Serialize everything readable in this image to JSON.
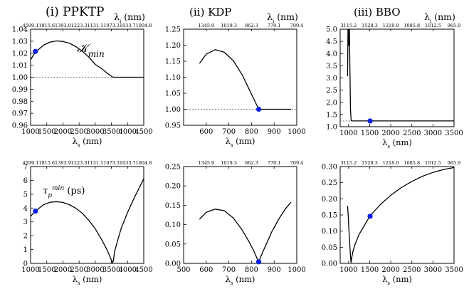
{
  "column_titles": [
    "(i) PPKTP",
    "(ii) KDP",
    "(iii) BBO"
  ],
  "chart_data": [
    {
      "id": "ppktp_k",
      "type": "line",
      "xlabel": "λs (nm)",
      "top_axis_label": "λi (nm)",
      "xlim": [
        1000,
        4500
      ],
      "ylim": [
        0.96,
        1.04
      ],
      "xticks": [
        1000,
        1500,
        2000,
        2500,
        3000,
        3500,
        4000,
        4500
      ],
      "yticks": [
        "0.96",
        "0.97",
        "0.98",
        "0.99",
        "1.00",
        "1.01",
        "1.02",
        "1.03",
        "1.04"
      ],
      "top_ticks": [
        "4599.1",
        "1815.6",
        "1393.9",
        "1223.3",
        "1131.1",
        "1073.3",
        "1033.7",
        "1004.8"
      ],
      "annotation": "Kmin",
      "series": [
        {
          "x": [
            1000,
            1100,
            1200,
            1400,
            1600,
            1800,
            2000,
            2200,
            2400,
            2600,
            2800,
            3000,
            3200,
            3400,
            3550,
            4500
          ],
          "y": [
            1.0145,
            1.019,
            1.022,
            1.0267,
            1.0293,
            1.0302,
            1.0298,
            1.0283,
            1.0255,
            1.0217,
            1.0167,
            1.0107,
            1.0071,
            1.0027,
            1.0,
            1.0
          ]
        }
      ],
      "marker": {
        "x": 1150,
        "y": 1.0215
      },
      "reference_line": 1.0
    },
    {
      "id": "kdp_k",
      "type": "line",
      "xlabel": "λs (nm)",
      "top_axis_label": "λi (nm)",
      "xlim": [
        500,
        1000
      ],
      "ylim": [
        0.95,
        1.25
      ],
      "xticks": [
        600,
        700,
        800,
        900,
        1000
      ],
      "yticks": [
        "0.95",
        "1.00",
        "1.05",
        "1.10",
        "1.15",
        "1.20",
        "1.25"
      ],
      "top_ticks": [
        "1345.9",
        "1019.3",
        "862.3",
        "770.1",
        "709.4"
      ],
      "series": [
        {
          "x": [
            570,
            600,
            640,
            680,
            720,
            760,
            800,
            832,
            900,
            975
          ],
          "y": [
            1.143,
            1.172,
            1.186,
            1.178,
            1.151,
            1.106,
            1.047,
            1.0,
            1.0,
            1.0
          ]
        }
      ],
      "marker": {
        "x": 832,
        "y": 1.0
      },
      "reference_line": 1.0
    },
    {
      "id": "bbo_k",
      "type": "line",
      "xlabel": "λs (nm)",
      "top_axis_label": "λi (nm)",
      "xlim": [
        800,
        3500
      ],
      "ylim": [
        0.75,
        5.0
      ],
      "xticks": [
        1000,
        1500,
        2000,
        2500,
        3000,
        3500
      ],
      "yticks": [
        "1.0",
        "1.5",
        "2.0",
        "2.5",
        "3.0",
        "3.5",
        "4.0",
        "4.5",
        "5.0"
      ],
      "top_ticks": [
        "3115.2",
        "1528.3",
        "1218.0",
        "1085.8",
        "1012.5",
        "965.9"
      ],
      "series": [
        {
          "x": [
            975,
            985,
            995,
            1000,
            1010,
            1020,
            1030,
            1045,
            1060,
            1080,
            3500
          ],
          "y": [
            2.95,
            5.0,
            5.0,
            4.3,
            5.0,
            5.0,
            3.5,
            1.5,
            1.02,
            1.0,
            1.0
          ]
        }
      ],
      "marker": {
        "x": 1510,
        "y": 1.0
      },
      "reference_line": 1.0
    },
    {
      "id": "ppktp_tau",
      "type": "line",
      "xlabel": "λs (nm)",
      "top_axis_label": "",
      "xlim": [
        1000,
        4500
      ],
      "ylim": [
        0,
        7.5
      ],
      "xticks": [
        1000,
        1500,
        2000,
        2500,
        3000,
        3500,
        4000,
        4500
      ],
      "yticks": [
        "0",
        "1",
        "2",
        "3",
        "4",
        "5",
        "6",
        "7"
      ],
      "top_ticks": [
        "4599.1",
        "1815.6",
        "1393.9",
        "1223.3",
        "1131.1",
        "1073.3",
        "1033.7",
        "1004.8"
      ],
      "annotation": "τp^min (ps)",
      "series": [
        {
          "x": [
            1000,
            1150,
            1400,
            1600,
            1800,
            2000,
            2200,
            2400,
            2600,
            2800,
            3000,
            3200,
            3350,
            3450,
            3530,
            3560,
            3600,
            3700,
            3800,
            4000,
            4200,
            4500
          ],
          "y": [
            3.65,
            4.05,
            4.55,
            4.73,
            4.78,
            4.72,
            4.55,
            4.27,
            3.88,
            3.33,
            2.68,
            1.83,
            1.12,
            0.55,
            0.05,
            0.2,
            0.95,
            1.85,
            2.7,
            3.95,
            5.05,
            6.55
          ]
        }
      ],
      "marker": {
        "x": 1150,
        "y": 4.05
      }
    },
    {
      "id": "kdp_tau",
      "type": "line",
      "xlabel": "λs (nm)",
      "top_axis_label": "",
      "xlim": [
        500,
        1000
      ],
      "ylim": [
        0,
        0.25
      ],
      "xticks": [
        500,
        600,
        700,
        800,
        900,
        1000
      ],
      "yticks": [
        "0.00",
        "0.05",
        "0.10",
        "0.15",
        "0.20",
        "0.25"
      ],
      "top_ticks": [
        "1345.9",
        "1019.3",
        "862.3",
        "770.1",
        "709.4"
      ],
      "series": [
        {
          "x": [
            570,
            600,
            640,
            680,
            720,
            760,
            790,
            810,
            825,
            832,
            840,
            860,
            890,
            920,
            950,
            975
          ],
          "y": [
            0.114,
            0.132,
            0.14,
            0.136,
            0.117,
            0.085,
            0.055,
            0.032,
            0.012,
            0.004,
            0.016,
            0.043,
            0.082,
            0.114,
            0.141,
            0.158
          ]
        }
      ],
      "marker": {
        "x": 832,
        "y": 0.004
      }
    },
    {
      "id": "bbo_tau",
      "type": "line",
      "xlabel": "λs (nm)",
      "top_axis_label": "",
      "xlim": [
        800,
        3500
      ],
      "ylim": [
        0,
        0.3
      ],
      "xticks": [
        1000,
        1500,
        2000,
        2500,
        3000,
        3500
      ],
      "yticks": [
        "0.00",
        "0.05",
        "0.10",
        "0.15",
        "0.20",
        "0.25",
        "0.30"
      ],
      "top_ticks": [
        "3115.2",
        "1528.3",
        "1218.0",
        "1085.8",
        "1012.5",
        "965.9"
      ],
      "series": [
        {
          "x": [
            975,
            990,
            1010,
            1030,
            1045,
            1055,
            1060,
            1075,
            1100,
            1150,
            1250,
            1500,
            1750,
            2000,
            2250,
            2500,
            2750,
            3000,
            3250,
            3500
          ],
          "y": [
            0.178,
            0.148,
            0.1,
            0.054,
            0.022,
            0.006,
            0.003,
            0.018,
            0.036,
            0.058,
            0.09,
            0.146,
            0.182,
            0.211,
            0.235,
            0.254,
            0.27,
            0.282,
            0.291,
            0.297
          ]
        }
      ],
      "marker": {
        "x": 1510,
        "y": 0.146
      }
    }
  ]
}
